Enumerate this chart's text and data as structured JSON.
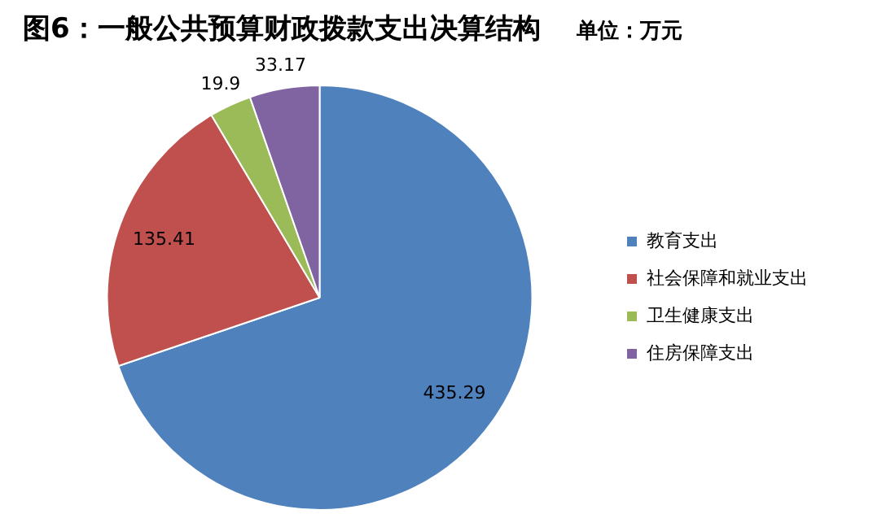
{
  "chart_data": {
    "type": "pie",
    "title": "图6：一般公共预算财政拨款支出决算结构",
    "subtitle": "单位：万元",
    "categories": [
      "教育支出",
      "社会保障和就业支出",
      "卫生健康支出",
      "住房保障支出"
    ],
    "values": [
      435.29,
      135.41,
      19.9,
      33.17
    ],
    "colors": [
      "#4f81bd",
      "#c0504d",
      "#9bbb59",
      "#8064a2"
    ],
    "data_labels": true,
    "legend": "right"
  }
}
